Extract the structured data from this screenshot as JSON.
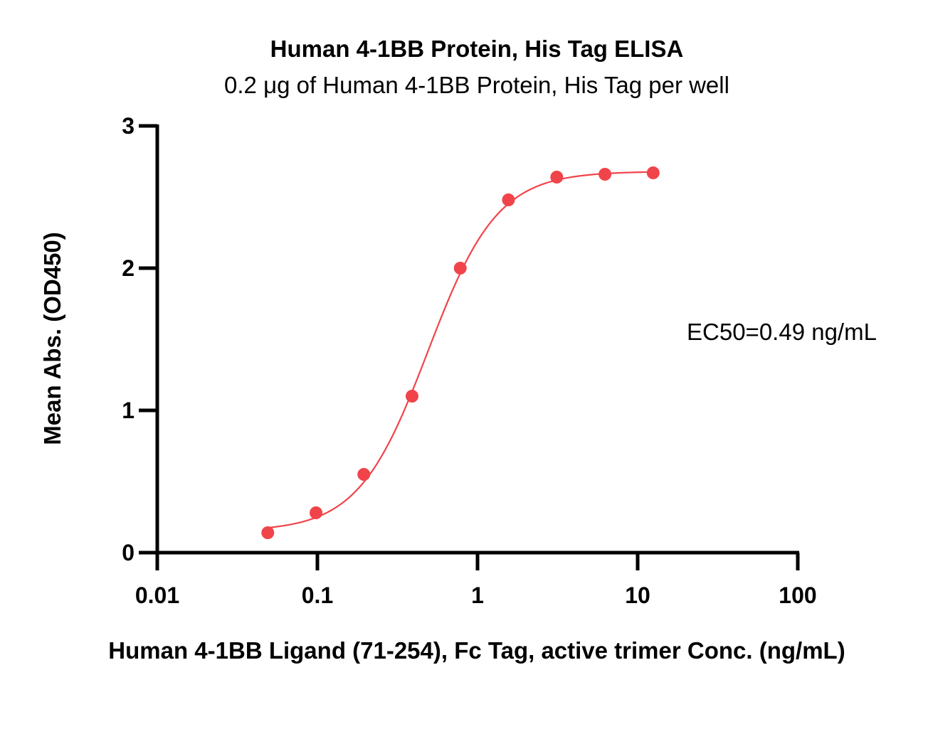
{
  "chart_data": {
    "type": "scatter",
    "title": "Human 4-1BB Protein, His Tag ELISA",
    "subtitle": "0.2 μg of Human 4-1BB Protein, His Tag per well",
    "xlabel": "Human 4-1BB Ligand (71-254), Fc Tag, active trimer Conc. (ng/mL)",
    "ylabel": "Mean Abs. (OD450)",
    "x_scale": "log",
    "xlim": [
      0.01,
      100
    ],
    "ylim": [
      0,
      3
    ],
    "x_ticks": [
      "0.01",
      "0.1",
      "1",
      "10",
      "100"
    ],
    "y_ticks": [
      "0",
      "1",
      "2",
      "3"
    ],
    "grid": false,
    "annotation": "EC50=0.49 ng/mL",
    "series": [
      {
        "x": [
          0.049,
          0.098,
          0.195,
          0.39,
          0.78,
          1.56,
          3.125,
          6.25,
          12.5
        ],
        "y": [
          0.14,
          0.28,
          0.55,
          1.1,
          2.0,
          2.48,
          2.64,
          2.66,
          2.67
        ],
        "color": "#f0444a"
      }
    ],
    "fit_curve": {
      "model": "4PL",
      "bottom": 0.15,
      "top": 2.68,
      "ec50": 0.49,
      "hill": 2.0,
      "x_range": [
        0.049,
        12.5
      ],
      "color": "#f0444a"
    }
  }
}
